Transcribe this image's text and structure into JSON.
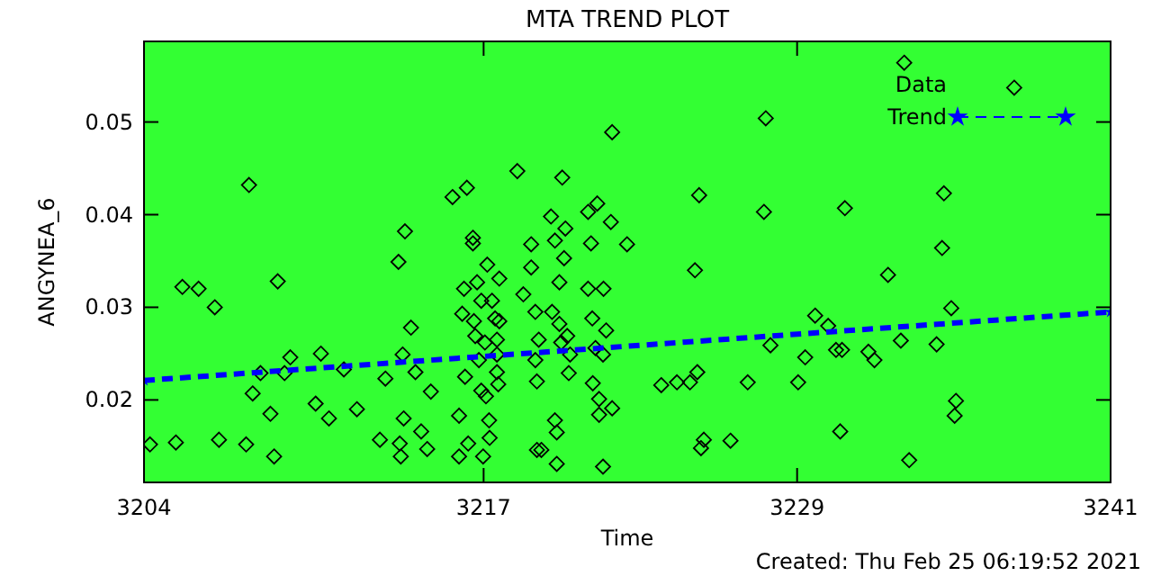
{
  "chart_data": {
    "type": "scatter",
    "title": "MTA TREND PLOT",
    "xlabel": "Time",
    "ylabel": "ANGYNEA_6",
    "xlim": [
      3204,
      3241
    ],
    "xticks": [
      3204,
      3217,
      3229,
      3241
    ],
    "ylim": [
      0.0111,
      0.0587
    ],
    "yticks": [
      0.02,
      0.03,
      0.04,
      0.05
    ],
    "legend": "top right",
    "grid": false,
    "annotations": [
      "Created: Thu Feb 25 06:19:52 2021"
    ],
    "series": [
      {
        "name": "Data",
        "color": "#000000",
        "marker": "diamond",
        "x": [
          3204.23,
          3205.22,
          3205.47,
          3206.09,
          3206.71,
          3206.87,
          3208.02,
          3207.91,
          3208.16,
          3208.46,
          3208.84,
          3209.12,
          3208.98,
          3209.38,
          3209.6,
          3210.57,
          3210.77,
          3211.08,
          3211.65,
          3212.15,
          3213.03,
          3213.24,
          3213.74,
          3213.79,
          3213.83,
          3213.94,
          3213.99,
          3213.9,
          3214.22,
          3214.39,
          3214.61,
          3214.84,
          3214.98,
          3215.81,
          3216.36,
          3216.18,
          3216.06,
          3216.06,
          3216.29,
          3216.25,
          3216.41,
          3216.59,
          3216.59,
          3216.63,
          3216.68,
          3216.75,
          3216.82,
          3216.91,
          3216.91,
          3216.98,
          3217.05,
          3217.09,
          3217.14,
          3217.21,
          3217.23,
          3217.32,
          3217.44,
          3217.51,
          3217.51,
          3217.56,
          3217.6,
          3217.6,
          3217.51,
          3218.29,
          3218.52,
          3218.82,
          3218.82,
          3218.98,
          3218.98,
          3219.04,
          3219.11,
          3219.04,
          3219.21,
          3219.58,
          3219.62,
          3219.73,
          3219.73,
          3219.8,
          3219.8,
          3219.9,
          3219.9,
          3219.97,
          3220.01,
          3220.08,
          3220.13,
          3220.2,
          3220.26,
          3220.31,
          3221.0,
          3221.11,
          3221.0,
          3221.16,
          3221.18,
          3221.28,
          3221.42,
          3221.42,
          3221.59,
          3221.57,
          3221.57,
          3221.35,
          3221.92,
          3221.87,
          3221.69,
          3222.49,
          3221.92,
          3223.8,
          3224.4,
          3224.9,
          3225.18,
          3225.25,
          3225.09,
          3225.43,
          3225.32,
          3226.45,
          3227.11,
          3227.73,
          3227.8,
          3227.98,
          3229.04,
          3229.31,
          3229.69,
          3230.19,
          3230.49,
          3230.72,
          3230.65,
          3230.83,
          3231.73,
          3231.96,
          3232.48,
          3232.97,
          3233.29,
          3233.1,
          3234.34,
          3234.55,
          3234.62,
          3234.9,
          3235.08,
          3235.03,
          3237.31
        ],
        "values": [
          0.0152,
          0.0154,
          0.0322,
          0.032,
          0.03,
          0.0157,
          0.0432,
          0.0152,
          0.0207,
          0.0229,
          0.0185,
          0.0328,
          0.0139,
          0.0229,
          0.0246,
          0.0196,
          0.025,
          0.018,
          0.0233,
          0.019,
          0.0157,
          0.0223,
          0.0349,
          0.0153,
          0.0139,
          0.018,
          0.0382,
          0.0249,
          0.0278,
          0.023,
          0.0166,
          0.0147,
          0.0209,
          0.0419,
          0.0429,
          0.0293,
          0.0183,
          0.0139,
          0.0225,
          0.032,
          0.0153,
          0.0375,
          0.0369,
          0.0285,
          0.0269,
          0.0327,
          0.0243,
          0.0307,
          0.021,
          0.0139,
          0.0262,
          0.0204,
          0.0346,
          0.0178,
          0.0159,
          0.0307,
          0.0288,
          0.0265,
          0.023,
          0.0217,
          0.0331,
          0.0285,
          0.0249,
          0.0447,
          0.0314,
          0.0368,
          0.0343,
          0.0295,
          0.0243,
          0.022,
          0.0265,
          0.0146,
          0.0146,
          0.0398,
          0.0295,
          0.0372,
          0.0178,
          0.0165,
          0.0131,
          0.0327,
          0.0282,
          0.0262,
          0.044,
          0.0353,
          0.0385,
          0.0269,
          0.0229,
          0.0249,
          0.0403,
          0.0369,
          0.032,
          0.0288,
          0.0218,
          0.0256,
          0.0184,
          0.0201,
          0.032,
          0.0128,
          0.0249,
          0.0412,
          0.0489,
          0.0392,
          0.0275,
          0.0368,
          0.0191,
          0.0216,
          0.0219,
          0.0219,
          0.023,
          0.0421,
          0.034,
          0.0157,
          0.0148,
          0.0156,
          0.0219,
          0.0403,
          0.0504,
          0.0259,
          0.0219,
          0.0246,
          0.0291,
          0.028,
          0.0254,
          0.0254,
          0.0166,
          0.0407,
          0.0252,
          0.0243,
          0.0335,
          0.0264,
          0.0135,
          0.0564,
          0.026,
          0.0364,
          0.0423,
          0.0299,
          0.0199,
          0.0183,
          0.0537
        ]
      },
      {
        "name": "Trend",
        "type": "line",
        "color": "#0000ff",
        "marker": "star",
        "line_style": "dashed",
        "x": [
          3204,
          3241
        ],
        "values": [
          0.0221,
          0.0295
        ]
      }
    ]
  }
}
